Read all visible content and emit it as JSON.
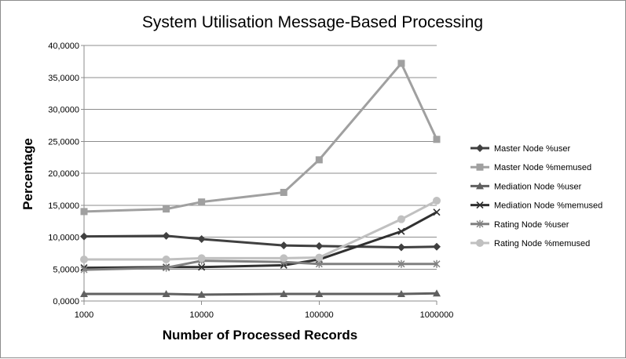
{
  "chart_data": {
    "type": "line",
    "title": "System Utilisation Message-Based Processing",
    "xlabel": "Number of Processed Records",
    "ylabel": "Percentage",
    "x": [
      1000,
      5000,
      10000,
      50000,
      100000,
      500000,
      1000000
    ],
    "x_scale": "log",
    "x_tick_labels": [
      "1000",
      "10000",
      "100000",
      "1000000"
    ],
    "y_tick_labels": [
      "0,0000",
      "5,0000",
      "10,0000",
      "15,0000",
      "20,0000",
      "25,0000",
      "30,0000",
      "35,0000",
      "40,0000"
    ],
    "ylim": [
      0,
      40
    ],
    "grid": "horizontal",
    "legend_position": "right",
    "series": [
      {
        "name": "Master Node %user",
        "color": "#404040",
        "marker": "diamond",
        "values": [
          10.1,
          10.2,
          9.7,
          8.7,
          8.6,
          8.4,
          8.5
        ]
      },
      {
        "name": "Master Node %memused",
        "color": "#a0a0a0",
        "marker": "square",
        "values": [
          14.0,
          14.4,
          15.5,
          17.0,
          22.1,
          37.2,
          25.3
        ]
      },
      {
        "name": "Mediation Node %user",
        "color": "#606060",
        "marker": "triangle",
        "values": [
          1.1,
          1.1,
          1.0,
          1.1,
          1.1,
          1.1,
          1.2
        ]
      },
      {
        "name": "Mediation Node %memused",
        "color": "#303030",
        "marker": "x",
        "values": [
          5.2,
          5.3,
          5.3,
          5.6,
          6.5,
          10.9,
          13.9
        ]
      },
      {
        "name": "Rating Node %user",
        "color": "#808080",
        "marker": "star",
        "values": [
          4.9,
          5.2,
          6.3,
          6.1,
          5.8,
          5.8,
          5.8
        ]
      },
      {
        "name": "Rating Node %memused",
        "color": "#c0c0c0",
        "marker": "circle",
        "values": [
          6.5,
          6.5,
          6.7,
          6.7,
          6.8,
          12.8,
          15.7
        ]
      }
    ]
  }
}
